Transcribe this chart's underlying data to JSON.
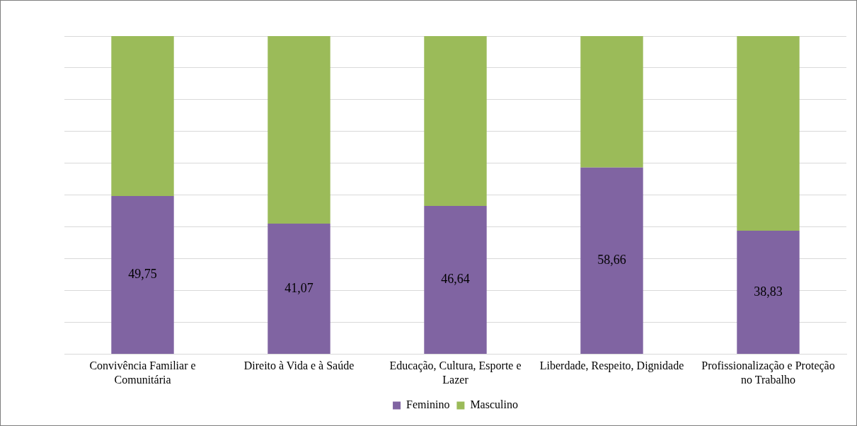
{
  "chart_data": {
    "type": "bar",
    "stacked": true,
    "categories": [
      "Convivência Familiar e Comunitária",
      "Direito à Vida e à Saúde",
      "Educação, Cultura, Esporte e Lazer",
      "Liberdade, Respeito, Dignidade",
      "Profissionalização e Proteção no Trabalho"
    ],
    "series": [
      {
        "name": "Feminino",
        "color": "#8064a2",
        "values": [
          49.75,
          41.07,
          46.64,
          58.66,
          38.83
        ],
        "value_labels": [
          "49,75",
          "41,07",
          "46,64",
          "58,66",
          "38,83"
        ]
      },
      {
        "name": "Masculino",
        "color": "#9bbb59",
        "values": [
          50.25,
          58.93,
          53.36,
          41.34,
          61.17
        ]
      }
    ],
    "ylim": [
      0,
      100
    ],
    "yticks": [
      {
        "value": 0,
        "label": null
      },
      {
        "value": 10,
        "label": null
      },
      {
        "value": 20,
        "label": null
      },
      {
        "value": 30,
        "label": null
      },
      {
        "value": 40,
        "label": null
      },
      {
        "value": 50,
        "label": null
      },
      {
        "value": 60,
        "label": null
      },
      {
        "value": 70,
        "label": null
      },
      {
        "value": 80,
        "label": null
      },
      {
        "value": 90,
        "label": null
      },
      {
        "value": 100,
        "label": null
      }
    ],
    "tick_labels": "x",
    "grid": "y",
    "legend": "bottom"
  }
}
